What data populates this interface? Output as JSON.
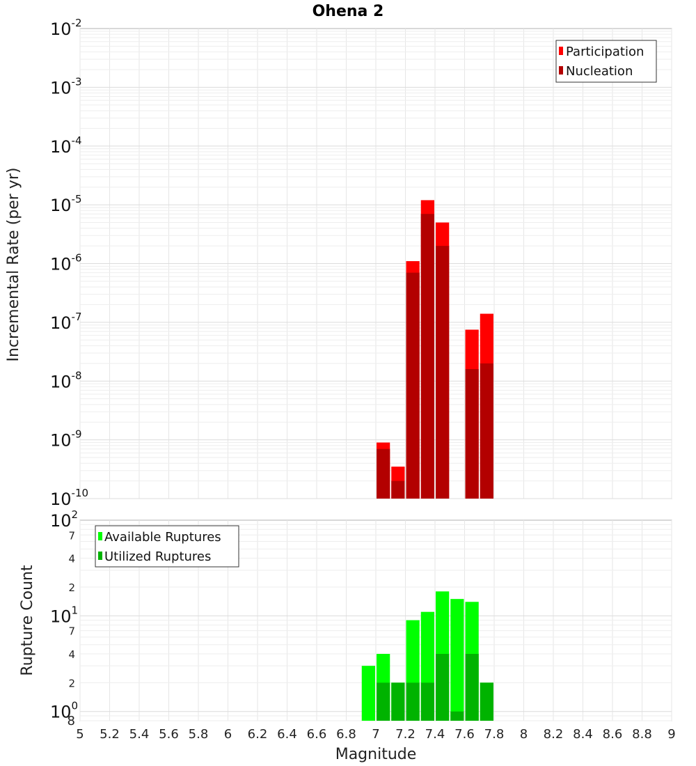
{
  "chart_data": [
    {
      "type": "bar",
      "title": "Ohena 2",
      "ylabel": "Incremental Rate (per yr)",
      "xlabel": "",
      "xlim": [
        5,
        9
      ],
      "ylim": [
        1e-10,
        0.01
      ],
      "y_scale": "log",
      "bin_width": 0.1,
      "grid": true,
      "y_ticks": [
        {
          "base": "10",
          "exp": "-10"
        },
        {
          "base": "10",
          "exp": "-9"
        },
        {
          "base": "10",
          "exp": "-8"
        },
        {
          "base": "10",
          "exp": "-7"
        },
        {
          "base": "10",
          "exp": "-6"
        },
        {
          "base": "10",
          "exp": "-5"
        },
        {
          "base": "10",
          "exp": "-4"
        },
        {
          "base": "10",
          "exp": "-3"
        },
        {
          "base": "10",
          "exp": "-2"
        }
      ],
      "legend_position": "top-right",
      "series": [
        {
          "name": "Participation",
          "color": "#ff0000",
          "x": [
            7.05,
            7.15,
            7.25,
            7.35,
            7.45,
            7.65,
            7.75
          ],
          "values": [
            9e-10,
            3.5e-10,
            1.1e-06,
            1.2e-05,
            5e-06,
            7.5e-08,
            1.4e-07
          ]
        },
        {
          "name": "Nucleation",
          "color": "#b30000",
          "x": [
            7.05,
            7.15,
            7.25,
            7.35,
            7.45,
            7.65,
            7.75
          ],
          "values": [
            7e-10,
            2e-10,
            7e-07,
            7e-06,
            2e-06,
            1.6e-08,
            2e-08
          ]
        }
      ]
    },
    {
      "type": "bar",
      "title": "",
      "ylabel": "Rupture Count",
      "xlabel": "Magnitude",
      "xlim": [
        5,
        9
      ],
      "x_ticks": [
        "5",
        "5.2",
        "5.4",
        "5.6",
        "5.8",
        "6",
        "6.2",
        "6.4",
        "6.6",
        "6.8",
        "7",
        "7.2",
        "7.4",
        "7.6",
        "7.8",
        "8",
        "8.2",
        "8.4",
        "8.6",
        "8.8",
        "9"
      ],
      "ylim": [
        0.8,
        100
      ],
      "y_scale": "log",
      "bin_width": 0.1,
      "grid": true,
      "y_ticks": [
        {
          "value": 1,
          "base": "10",
          "exp": "0"
        },
        {
          "value": 10,
          "base": "10",
          "exp": "1"
        },
        {
          "value": 100,
          "base": "10",
          "exp": "2"
        }
      ],
      "y_minor_ticks": [
        {
          "value": 0.8,
          "label": "8"
        },
        {
          "value": 2,
          "label": "2"
        },
        {
          "value": 4,
          "label": "4"
        },
        {
          "value": 7,
          "label": "7"
        },
        {
          "value": 20,
          "label": "2"
        },
        {
          "value": 40,
          "label": "4"
        },
        {
          "value": 70,
          "label": "7"
        }
      ],
      "legend_position": "top-left",
      "series": [
        {
          "name": "Available Ruptures",
          "color": "#00ff00",
          "x": [
            6.95,
            7.05,
            7.15,
            7.25,
            7.35,
            7.45,
            7.55,
            7.65,
            7.75
          ],
          "values": [
            3,
            4,
            2,
            9,
            11,
            18,
            15,
            14,
            2
          ]
        },
        {
          "name": "Utilized Ruptures",
          "color": "#00b300",
          "x": [
            6.95,
            7.05,
            7.15,
            7.25,
            7.35,
            7.45,
            7.55,
            7.65,
            7.75
          ],
          "values": [
            0,
            2,
            2,
            2,
            2,
            4,
            1,
            4,
            2
          ]
        }
      ]
    }
  ]
}
